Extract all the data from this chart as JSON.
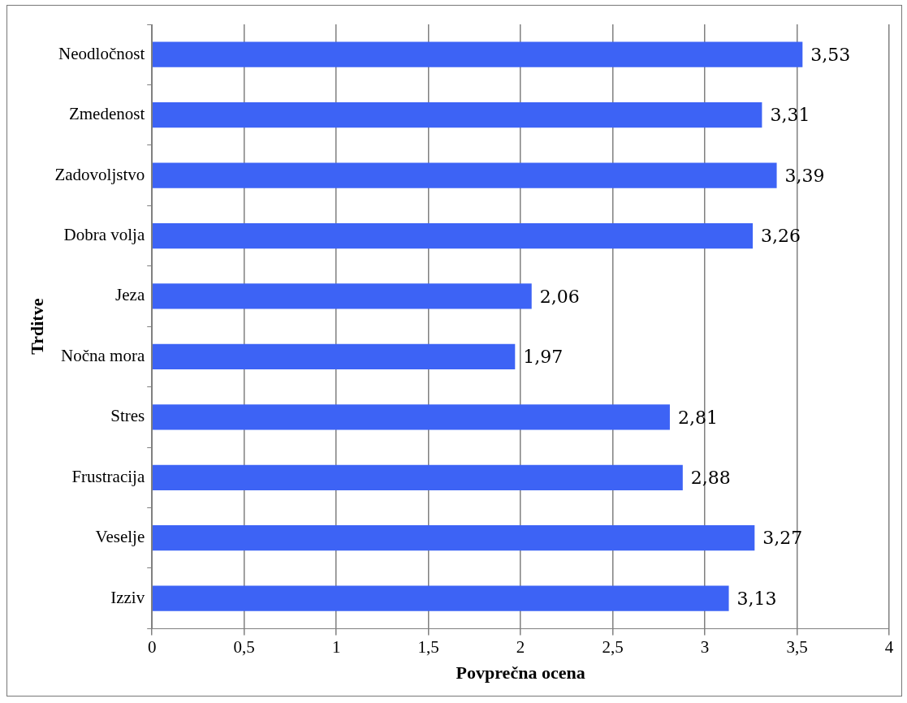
{
  "chart_data": {
    "type": "bar",
    "orientation": "horizontal",
    "xlabel": "Povprečna ocena",
    "ylabel": "Trditve",
    "categories": [
      "Neodločnost",
      "Zmedenost",
      "Zadovoljstvo",
      "Dobra volja",
      "Jeza",
      "Nočna mora",
      "Stres",
      "Frustracija",
      "Veselje",
      "Izziv"
    ],
    "values": [
      3.53,
      3.31,
      3.39,
      3.26,
      2.06,
      1.97,
      2.81,
      2.88,
      3.27,
      3.13
    ],
    "value_labels": [
      "3,53",
      "3,31",
      "3,39",
      "3,26",
      "2,06",
      "1,97",
      "2,81",
      "2,88",
      "3,27",
      "3,13"
    ],
    "color": "#3d63f5",
    "xlim": [
      0,
      4
    ],
    "xticks": [
      0,
      {
        "value": 0.5,
        "label": "0,5"
      },
      1,
      {
        "value": 1.5,
        "label": "1,5"
      },
      2,
      {
        "value": 2.5,
        "label": "2,5"
      },
      3,
      {
        "value": 3.5,
        "label": "3,5"
      },
      4
    ],
    "grid": "x",
    "legend": false
  }
}
